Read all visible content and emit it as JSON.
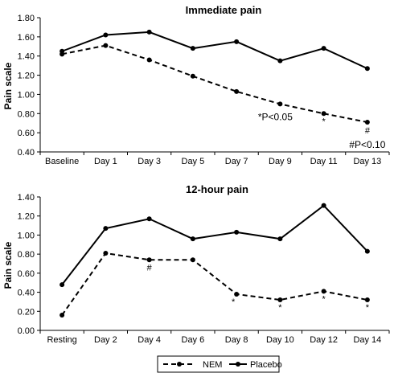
{
  "chart_data": [
    {
      "type": "line",
      "title": "Immediate pain",
      "ylabel": "Pain scale",
      "xlabel": "",
      "categories": [
        "Baseline",
        "Day 1",
        "Day 3",
        "Day 5",
        "Day 7",
        "Day 9",
        "Day 11",
        "Day 13"
      ],
      "ylim": [
        0.4,
        1.8
      ],
      "yticks": [
        "0.40",
        "0.60",
        "0.80",
        "1.00",
        "1.20",
        "1.40",
        "1.60",
        "1.80"
      ],
      "grid": false,
      "series": [
        {
          "name": "NEM",
          "style": "dashed",
          "values": [
            1.42,
            1.51,
            1.36,
            1.19,
            1.03,
            0.9,
            0.8,
            0.71
          ]
        },
        {
          "name": "Placebo",
          "style": "solid",
          "values": [
            1.45,
            1.62,
            1.65,
            1.48,
            1.55,
            1.35,
            1.48,
            1.27
          ]
        }
      ],
      "annotations": [
        {
          "category": "Day 9",
          "text": "*P<0.05"
        },
        {
          "category": "Day 11",
          "text": "*"
        },
        {
          "category": "Day 13",
          "text": "#"
        },
        {
          "category": "Day 13",
          "text": "#P<0.10"
        }
      ]
    },
    {
      "type": "line",
      "title": "12-hour pain",
      "ylabel": "Pain scale",
      "xlabel": "",
      "categories": [
        "Resting",
        "Day 2",
        "Day 4",
        "Day 6",
        "Day 8",
        "Day 10",
        "Day 12",
        "Day 14"
      ],
      "ylim": [
        0.0,
        1.4
      ],
      "yticks": [
        "0.00",
        "0.20",
        "0.40",
        "0.60",
        "0.80",
        "1.00",
        "1.20",
        "1.40"
      ],
      "grid": false,
      "series": [
        {
          "name": "NEM",
          "style": "dashed",
          "values": [
            0.16,
            0.81,
            0.74,
            0.74,
            0.38,
            0.32,
            0.41,
            0.32
          ]
        },
        {
          "name": "Placebo",
          "style": "solid",
          "values": [
            0.48,
            1.07,
            1.17,
            0.96,
            1.03,
            0.96,
            1.31,
            0.83
          ]
        }
      ],
      "annotations": [
        {
          "category": "Day 4",
          "text": "#"
        },
        {
          "category": "Day 8",
          "text": "*"
        },
        {
          "category": "Day 10",
          "text": "*"
        },
        {
          "category": "Day 12",
          "text": "*"
        },
        {
          "category": "Day 14",
          "text": "*"
        }
      ]
    }
  ],
  "legend": {
    "position": "bottom-center",
    "items": [
      {
        "name": "NEM",
        "style": "dashed"
      },
      {
        "name": "Placebo",
        "style": "solid"
      }
    ]
  },
  "colors": {
    "line": "#000000",
    "axis": "#000000",
    "legend_border": "#000000"
  }
}
